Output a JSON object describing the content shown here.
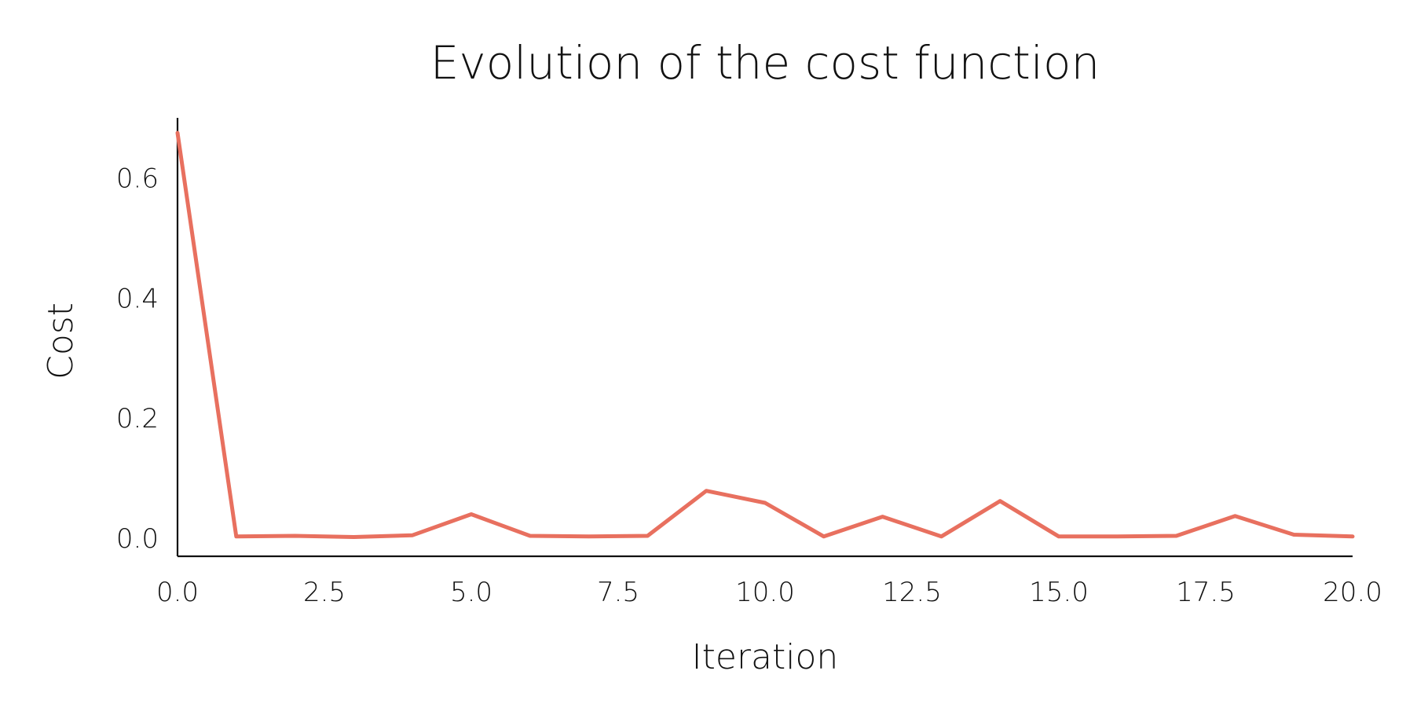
{
  "chart_data": {
    "type": "line",
    "title": "Evolution of the cost function",
    "xlabel": "Iteration",
    "ylabel": "Cost",
    "xlim": [
      0,
      20
    ],
    "ylim": [
      -0.03,
      0.7
    ],
    "x_ticks": [
      {
        "value": 0,
        "label": "0.0"
      },
      {
        "value": 2.5,
        "label": "2.5"
      },
      {
        "value": 5,
        "label": "5.0"
      },
      {
        "value": 7.5,
        "label": "7.5"
      },
      {
        "value": 10,
        "label": "10.0"
      },
      {
        "value": 12.5,
        "label": "12.5"
      },
      {
        "value": 15,
        "label": "15.0"
      },
      {
        "value": 17.5,
        "label": "17.5"
      },
      {
        "value": 20,
        "label": "20.0"
      }
    ],
    "y_ticks": [
      {
        "value": 0.0,
        "label": "0.0"
      },
      {
        "value": 0.2,
        "label": "0.2"
      },
      {
        "value": 0.4,
        "label": "0.4"
      },
      {
        "value": 0.6,
        "label": "0.6"
      }
    ],
    "grid": false,
    "series": [
      {
        "color": "#e8705f",
        "x": [
          0,
          1,
          2,
          3,
          4,
          5,
          6,
          7,
          8,
          9,
          10,
          11,
          12,
          13,
          14,
          15,
          16,
          17,
          18,
          19,
          20
        ],
        "y": [
          0.675,
          0.003,
          0.004,
          0.002,
          0.005,
          0.04,
          0.004,
          0.003,
          0.004,
          0.079,
          0.059,
          0.003,
          0.036,
          0.003,
          0.062,
          0.003,
          0.003,
          0.004,
          0.037,
          0.006,
          0.003
        ]
      }
    ]
  }
}
